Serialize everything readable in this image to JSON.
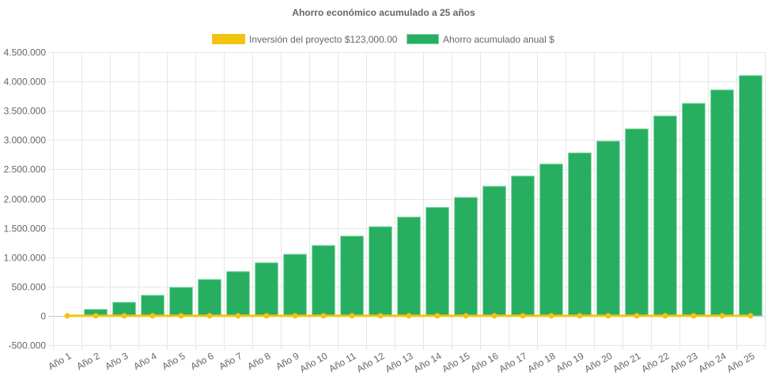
{
  "chart_data": {
    "type": "bar",
    "title": "Ahorro económico acumulado a 25 años",
    "xlabel": "",
    "ylabel": "",
    "ylim": [
      -500000,
      4500000
    ],
    "y_step": 500000,
    "y_tick_labels": [
      "-500.000",
      "0",
      "500.000",
      "1.000.000",
      "1.500.000",
      "2.000.000",
      "2.500.000",
      "3.000.000",
      "3.500.000",
      "4.000.000",
      "4.500.000"
    ],
    "grid": true,
    "legend_position": "top",
    "categories": [
      "Año 1",
      "Año 2",
      "Año 3",
      "Año 4",
      "Año 5",
      "Año 6",
      "Año 7",
      "Año 8",
      "Año 9",
      "Año 10",
      "Año 11",
      "Año 12",
      "Año 13",
      "Año 14",
      "Año 15",
      "Año 16",
      "Año 17",
      "Año 18",
      "Año 19",
      "Año 20",
      "Año 21",
      "Año 22",
      "Año 23",
      "Año 24",
      "Año 25"
    ],
    "series": [
      {
        "name": "Inversión del proyecto $123,000.00",
        "type": "line",
        "color": "#f1c40f",
        "values": [
          0,
          0,
          0,
          0,
          0,
          0,
          0,
          0,
          0,
          0,
          0,
          0,
          0,
          0,
          0,
          0,
          0,
          0,
          0,
          0,
          0,
          0,
          0,
          0,
          0
        ]
      },
      {
        "name": "Ahorro acumulado anual $",
        "type": "bar",
        "color": "#27ae60",
        "values": [
          0,
          110000,
          230000,
          350000,
          485000,
          620000,
          755000,
          905000,
          1050000,
          1200000,
          1360000,
          1520000,
          1685000,
          1850000,
          2020000,
          2210000,
          2385000,
          2590000,
          2780000,
          2980000,
          3190000,
          3410000,
          3625000,
          3855000,
          4100000
        ]
      }
    ]
  }
}
